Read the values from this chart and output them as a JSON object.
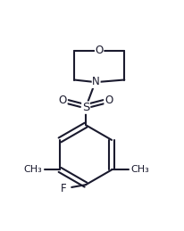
{
  "background_color": "#ffffff",
  "line_color": "#1a1a2e",
  "line_width": 1.5,
  "font_size_labels": 8.5,
  "figsize": [
    2.06,
    2.59
  ],
  "dpi": 100,
  "xlim": [
    -2.2,
    2.2
  ],
  "ylim": [
    -3.2,
    2.0
  ]
}
